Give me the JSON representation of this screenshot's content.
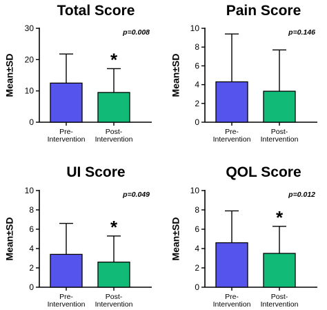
{
  "chart_data": [
    {
      "type": "bar",
      "title": "Total Score",
      "ylabel": "Mean±SD",
      "categories": [
        "Pre-\nIntervention",
        "Post-\nIntervention"
      ],
      "values": [
        12.5,
        9.5
      ],
      "errors": [
        9.3,
        7.6
      ],
      "ylim": [
        0,
        30
      ],
      "yticks": [
        0,
        10,
        20,
        30
      ],
      "colors": [
        "#5555ee",
        "#11bb77"
      ],
      "p_value": "p=0.008",
      "significance_marker": "*",
      "significant_category": 1
    },
    {
      "type": "bar",
      "title": "Pain Score",
      "ylabel": "Mean±SD",
      "categories": [
        "Pre-\nIntervention",
        "Post-\nIntervention"
      ],
      "values": [
        4.3,
        3.3
      ],
      "errors": [
        5.1,
        4.4
      ],
      "ylim": [
        0,
        10
      ],
      "yticks": [
        0,
        2,
        4,
        6,
        8,
        10
      ],
      "colors": [
        "#5555ee",
        "#11bb77"
      ],
      "p_value": "p=0.146",
      "significance_marker": "",
      "significant_category": -1
    },
    {
      "type": "bar",
      "title": "UI Score",
      "ylabel": "Mean±SD",
      "categories": [
        "Pre-\nIntervention",
        "Post-\nIntervention"
      ],
      "values": [
        3.4,
        2.6
      ],
      "errors": [
        3.2,
        2.7
      ],
      "ylim": [
        0,
        10
      ],
      "yticks": [
        0,
        2,
        4,
        6,
        8,
        10
      ],
      "colors": [
        "#5555ee",
        "#11bb77"
      ],
      "p_value": "p=0.049",
      "significance_marker": "*",
      "significant_category": 1
    },
    {
      "type": "bar",
      "title": "QOL Score",
      "ylabel": "Mean±SD",
      "categories": [
        "Pre-\nIntervention",
        "Post-\nIntervention"
      ],
      "values": [
        4.6,
        3.5
      ],
      "errors": [
        3.3,
        2.8
      ],
      "ylim": [
        0,
        10
      ],
      "yticks": [
        0,
        2,
        4,
        6,
        8,
        10
      ],
      "colors": [
        "#5555ee",
        "#11bb77"
      ],
      "p_value": "p=0.012",
      "significance_marker": "*",
      "significant_category": 1
    }
  ]
}
